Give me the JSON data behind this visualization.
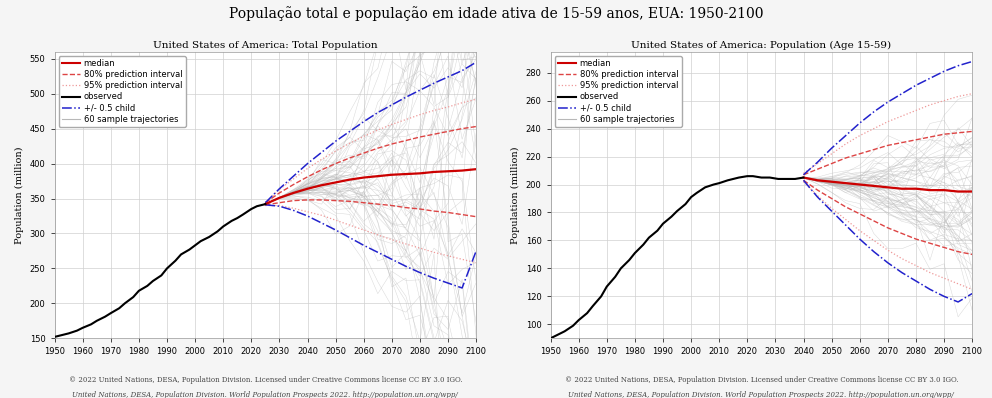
{
  "title": "População total e população em idade ativa de 15-59 anos, EUA: 1950-2100",
  "title_fontsize": 10,
  "subtitle1": "United States of America: Total Population",
  "subtitle2": "United States of America: Population (Age 15-59)",
  "subtitle_fontsize": 7.5,
  "ylabel": "Population (million)",
  "ylabel_fontsize": 7,
  "footnote1": "© 2022 United Nations, DESA, Population Division. Licensed under Creative Commons license CC BY 3.0 IGO.",
  "footnote2": "United Nations, DESA, Population Division. World Population Prospects 2022. http://population.un.org/wpp/",
  "footnote_fontsize": 5.0,
  "background_color": "#f5f5f5",
  "plot_bg_color": "#ffffff",
  "grid_color": "#d0d0d0",
  "obs_color": "#000000",
  "median_color": "#cc0000",
  "pi80_color": "#dd4444",
  "pi95_color": "#ee9999",
  "child_color": "#2222cc",
  "sample_color": "#b8b8b8",
  "legend_fontsize": 6.0,
  "tick_fontsize": 6.0,
  "left_ylim": [
    150,
    560
  ],
  "left_yticks": [
    150,
    200,
    250,
    300,
    350,
    400,
    450,
    500,
    550
  ],
  "right_ylim": [
    90,
    295
  ],
  "right_yticks": [
    100,
    120,
    140,
    160,
    180,
    200,
    220,
    240,
    260,
    280
  ],
  "xlim": [
    1950,
    2100
  ],
  "xticks": [
    1950,
    1960,
    1970,
    1980,
    1990,
    2000,
    2010,
    2020,
    2030,
    2040,
    2050,
    2060,
    2070,
    2080,
    2090,
    2100
  ],
  "obs_years_left": [
    1950,
    1952,
    1955,
    1958,
    1960,
    1963,
    1965,
    1968,
    1970,
    1973,
    1975,
    1978,
    1980,
    1983,
    1985,
    1988,
    1990,
    1993,
    1995,
    1998,
    2000,
    2002,
    2005,
    2008,
    2010,
    2013,
    2015,
    2017,
    2020,
    2022,
    2025
  ],
  "obs_pop_left": [
    152,
    154,
    157,
    161,
    165,
    170,
    175,
    181,
    186,
    193,
    200,
    209,
    218,
    225,
    232,
    240,
    250,
    261,
    270,
    277,
    283,
    289,
    295,
    303,
    310,
    318,
    322,
    327,
    335,
    339,
    342
  ],
  "proj_years_left": [
    2025,
    2030,
    2035,
    2040,
    2045,
    2050,
    2055,
    2060,
    2065,
    2070,
    2075,
    2080,
    2085,
    2090,
    2095,
    2100
  ],
  "median_left": [
    342,
    351,
    358,
    364,
    369,
    373,
    377,
    380,
    382,
    384,
    385,
    386,
    388,
    389,
    390,
    392
  ],
  "pi80_upper_left": [
    344,
    358,
    370,
    381,
    391,
    400,
    408,
    415,
    422,
    428,
    433,
    438,
    442,
    446,
    450,
    453
  ],
  "pi80_lower_left": [
    341,
    344,
    347,
    348,
    348,
    347,
    346,
    344,
    342,
    340,
    337,
    335,
    332,
    330,
    327,
    324
  ],
  "pi95_upper_left": [
    344,
    363,
    378,
    393,
    406,
    418,
    429,
    439,
    448,
    456,
    463,
    470,
    476,
    481,
    487,
    492
  ],
  "pi95_lower_left": [
    340,
    340,
    336,
    331,
    326,
    319,
    312,
    305,
    298,
    291,
    285,
    279,
    273,
    268,
    263,
    258
  ],
  "child_upper_left": [
    344,
    364,
    382,
    400,
    416,
    432,
    446,
    460,
    473,
    484,
    495,
    505,
    515,
    524,
    533,
    545
  ],
  "child_lower_left": [
    341,
    339,
    333,
    325,
    315,
    305,
    294,
    283,
    273,
    263,
    253,
    244,
    236,
    229,
    222,
    275
  ],
  "obs_years_right": [
    1950,
    1952,
    1955,
    1958,
    1960,
    1963,
    1965,
    1968,
    1970,
    1973,
    1975,
    1978,
    1980,
    1983,
    1985,
    1988,
    1990,
    1993,
    1995,
    1998,
    2000,
    2002,
    2005,
    2008,
    2010,
    2013,
    2015,
    2017,
    2020,
    2022,
    2025,
    2028,
    2031,
    2034,
    2037,
    2040
  ],
  "obs_pop_right": [
    90,
    92,
    95,
    99,
    103,
    108,
    113,
    120,
    127,
    134,
    140,
    146,
    151,
    157,
    162,
    167,
    172,
    177,
    181,
    186,
    191,
    194,
    198,
    200,
    201,
    203,
    204,
    205,
    206,
    206,
    205,
    205,
    204,
    204,
    204,
    205
  ],
  "proj_years_right": [
    2040,
    2045,
    2050,
    2055,
    2060,
    2065,
    2070,
    2075,
    2080,
    2085,
    2090,
    2095,
    2100
  ],
  "median_right": [
    205,
    203,
    202,
    201,
    200,
    199,
    198,
    197,
    197,
    196,
    196,
    195,
    195
  ],
  "pi80_upper_right": [
    207,
    211,
    215,
    219,
    222,
    225,
    228,
    230,
    232,
    234,
    236,
    237,
    238
  ],
  "pi80_lower_right": [
    203,
    196,
    190,
    184,
    179,
    174,
    169,
    165,
    161,
    158,
    155,
    152,
    150
  ],
  "pi95_upper_right": [
    208,
    215,
    222,
    229,
    235,
    240,
    245,
    249,
    253,
    257,
    260,
    263,
    265
  ],
  "pi95_lower_right": [
    202,
    192,
    183,
    175,
    167,
    160,
    153,
    147,
    142,
    137,
    133,
    129,
    125
  ],
  "child_upper_right": [
    207,
    216,
    226,
    235,
    244,
    252,
    259,
    265,
    271,
    276,
    281,
    285,
    288
  ],
  "child_lower_right": [
    203,
    191,
    181,
    171,
    161,
    152,
    144,
    137,
    131,
    125,
    120,
    116,
    122
  ]
}
